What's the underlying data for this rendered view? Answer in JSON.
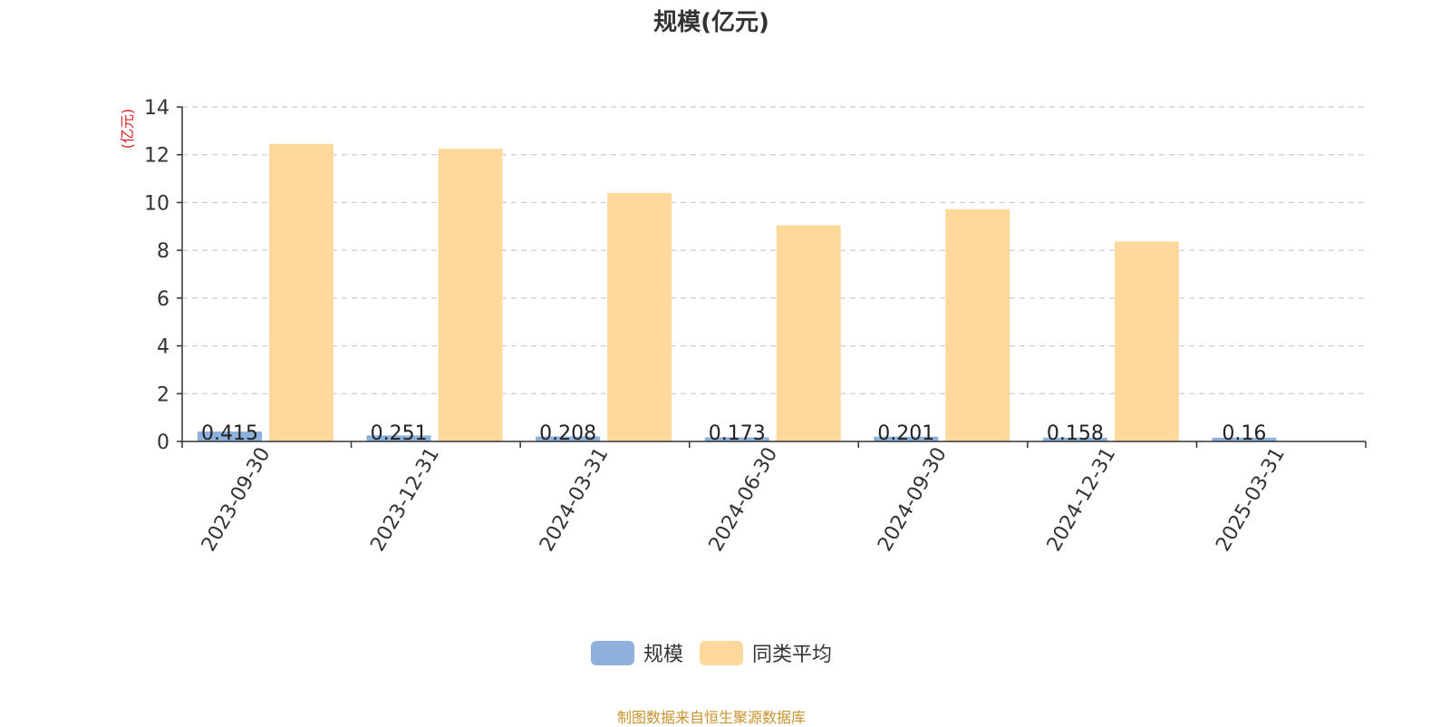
{
  "chart_data": {
    "type": "bar",
    "title": "规模(亿元)",
    "ylabel": "(亿元)",
    "xlabel": "",
    "ylim": [
      0,
      14
    ],
    "yticks": [
      "0",
      "2",
      "4",
      "6",
      "8",
      "10",
      "12",
      "14"
    ],
    "grid": true,
    "legend_position": "bottom",
    "categories": [
      "2023-09-30",
      "2023-12-31",
      "2024-03-31",
      "2024-06-30",
      "2024-09-30",
      "2024-12-31",
      "2025-03-31"
    ],
    "series": [
      {
        "name": "规模",
        "color": "#8eb0dc",
        "values": [
          0.415,
          0.251,
          0.208,
          0.173,
          0.201,
          0.158,
          0.16
        ],
        "labels": [
          "0.415",
          "0.251",
          "0.208",
          "0.173",
          "0.201",
          "0.158",
          "0.16"
        ]
      },
      {
        "name": "同类平均",
        "color": "#fed99b",
        "values": [
          12.45,
          12.25,
          10.4,
          9.05,
          9.72,
          8.37,
          null
        ]
      }
    ]
  },
  "source_note": "制图数据来自恒生聚源数据库",
  "colors": {
    "axis_label": "#e02020",
    "grid": "#cccccc",
    "axis": "#333333",
    "source_note": "#c8922e"
  }
}
